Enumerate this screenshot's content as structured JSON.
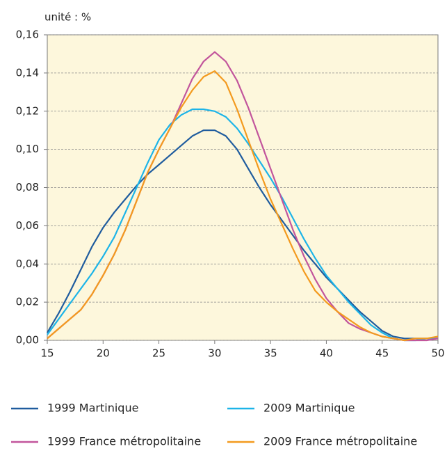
{
  "chart_data": {
    "type": "line",
    "unit_label": "unité : %",
    "x": [
      15,
      16,
      17,
      18,
      19,
      20,
      21,
      22,
      23,
      24,
      25,
      26,
      27,
      28,
      29,
      30,
      31,
      32,
      33,
      34,
      35,
      36,
      37,
      38,
      39,
      40,
      41,
      42,
      43,
      44,
      45,
      46,
      47,
      48,
      49,
      50
    ],
    "xlim": [
      15,
      50
    ],
    "xticks": [
      15,
      20,
      25,
      30,
      35,
      40,
      45,
      50
    ],
    "ylim": [
      0,
      0.16
    ],
    "yticks": [
      {
        "value": 0,
        "label": "0,00"
      },
      {
        "value": 0.02,
        "label": "0,02"
      },
      {
        "value": 0.04,
        "label": "0,04"
      },
      {
        "value": 0.06,
        "label": "0,06"
      },
      {
        "value": 0.08,
        "label": "0,08"
      },
      {
        "value": 0.1,
        "label": "0,10"
      },
      {
        "value": 0.12,
        "label": "0,12"
      },
      {
        "value": 0.14,
        "label": "0,14"
      },
      {
        "value": 0.16,
        "label": "0,16"
      }
    ],
    "grid": true,
    "plot_background": "#fdf7dc",
    "series": [
      {
        "name": "1999 Martinique",
        "color": "#1f5c9e",
        "values": [
          0.004,
          0.014,
          0.025,
          0.037,
          0.049,
          0.059,
          0.067,
          0.074,
          0.081,
          0.087,
          0.092,
          0.097,
          0.102,
          0.107,
          0.11,
          0.11,
          0.107,
          0.1,
          0.09,
          0.08,
          0.071,
          0.063,
          0.055,
          0.047,
          0.04,
          0.033,
          0.027,
          0.021,
          0.015,
          0.01,
          0.005,
          0.002,
          0.001,
          0.001,
          0.001,
          0.001
        ]
      },
      {
        "name": "2009 Martinique",
        "color": "#1cb4e8",
        "values": [
          0.003,
          0.011,
          0.019,
          0.027,
          0.035,
          0.044,
          0.054,
          0.067,
          0.08,
          0.093,
          0.105,
          0.113,
          0.118,
          0.121,
          0.121,
          0.12,
          0.117,
          0.111,
          0.103,
          0.094,
          0.085,
          0.075,
          0.064,
          0.053,
          0.043,
          0.034,
          0.027,
          0.02,
          0.014,
          0.008,
          0.004,
          0.001,
          0.0,
          0.0,
          0.001,
          0.001
        ]
      },
      {
        "name": "1999 France métropolitaine",
        "color": "#c2559c",
        "values": [
          0.001,
          0.006,
          0.011,
          0.016,
          0.024,
          0.034,
          0.045,
          0.058,
          0.073,
          0.088,
          0.1,
          0.111,
          0.124,
          0.137,
          0.146,
          0.151,
          0.146,
          0.136,
          0.122,
          0.106,
          0.09,
          0.074,
          0.058,
          0.044,
          0.032,
          0.022,
          0.015,
          0.009,
          0.006,
          0.004,
          0.002,
          0.001,
          0.0,
          0.0,
          0.0,
          0.001
        ]
      },
      {
        "name": "2009 France métropolitaine",
        "color": "#f39a1e",
        "values": [
          0.001,
          0.006,
          0.011,
          0.016,
          0.024,
          0.034,
          0.045,
          0.058,
          0.073,
          0.088,
          0.1,
          0.111,
          0.122,
          0.131,
          0.138,
          0.141,
          0.135,
          0.121,
          0.105,
          0.089,
          0.074,
          0.061,
          0.048,
          0.036,
          0.026,
          0.02,
          0.015,
          0.011,
          0.007,
          0.004,
          0.002,
          0.001,
          0.0,
          0.001,
          0.001,
          0.002
        ]
      }
    ]
  }
}
